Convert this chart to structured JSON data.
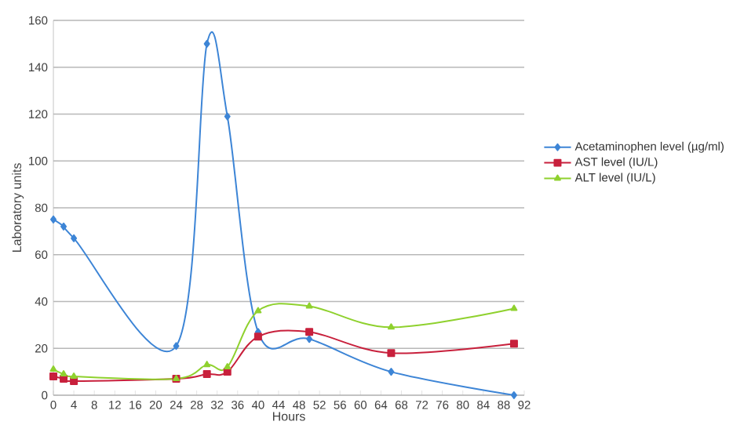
{
  "chart_data": {
    "type": "line",
    "xlabel": "Hours",
    "ylabel": "Laboratory units",
    "x": [
      0,
      2,
      4,
      24,
      30,
      34,
      40,
      50,
      66,
      90
    ],
    "series": [
      {
        "name": "Acetaminophen level (µg/ml)",
        "color": "#3d85d6",
        "marker": "diamond",
        "values": [
          75,
          72,
          67,
          21,
          150,
          119,
          27,
          24,
          10,
          0
        ]
      },
      {
        "name": "AST level (IU/L)",
        "color": "#c8203c",
        "marker": "square",
        "values": [
          8,
          7,
          6,
          7,
          9,
          10,
          25,
          27,
          18,
          22
        ]
      },
      {
        "name": "ALT level (IU/L)",
        "color": "#8fd12e",
        "marker": "triangle",
        "values": [
          11,
          9,
          8,
          7,
          13,
          12,
          36,
          38,
          29,
          37
        ]
      }
    ],
    "xlim": [
      0,
      92
    ],
    "xticks": [
      0,
      4,
      8,
      12,
      16,
      20,
      24,
      28,
      32,
      36,
      40,
      44,
      48,
      52,
      56,
      60,
      64,
      68,
      72,
      76,
      80,
      84,
      88,
      92
    ],
    "ylim": [
      0,
      160
    ],
    "yticks": [
      0,
      20,
      40,
      60,
      80,
      100,
      120,
      140,
      160
    ],
    "grid": "y",
    "legend": "right"
  }
}
